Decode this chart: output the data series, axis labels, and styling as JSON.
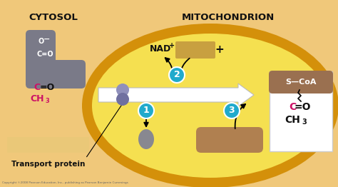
{
  "bg_light_orange": "#F0C87A",
  "bg_mito_outer": "#D4900A",
  "bg_mito_inner": "#F5E050",
  "bg_cytosol": "#F0C878",
  "gray_molecule": "#7A7A88",
  "purple_dot1": "#9090BB",
  "purple_dot2": "#7070A0",
  "teal_circle": "#20AACC",
  "nad_box_color": "#C8A040",
  "coa_header_color": "#9A7050",
  "pink_text": "#CC1166",
  "black_text": "#111111",
  "white": "#FFFFFF",
  "co2_color": "#888890",
  "coa_pill_color": "#B08050",
  "title_cytosol": "CYTOSOL",
  "title_mito": "MITOCHONDRION",
  "label_transport": "Transport protein",
  "copyright": "Copyright ©2008 Pearson Education, Inc., publishing as Pearson Benjamin Cummings"
}
